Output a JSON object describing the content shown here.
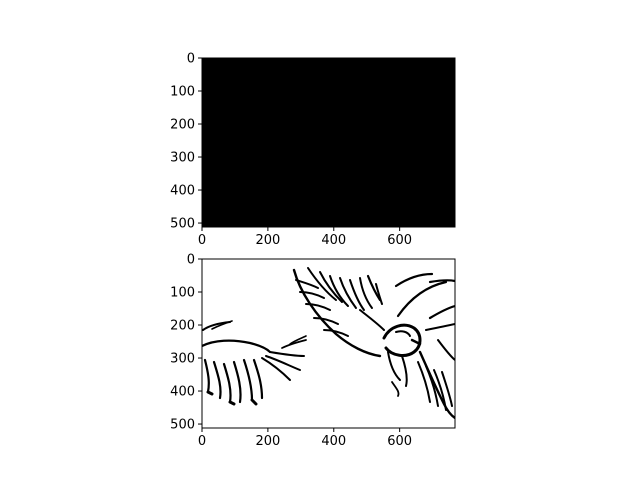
{
  "chart_data": [
    {
      "type": "image",
      "content": "solid black",
      "xlim": [
        0,
        768
      ],
      "ylim": [
        512,
        0
      ],
      "xticks": [
        0,
        200,
        400,
        600
      ],
      "yticks": [
        0,
        100,
        200,
        300,
        400,
        500
      ],
      "fill_color": "#000000"
    },
    {
      "type": "image",
      "content": "black line drawing of eagles and feathered wings on white background",
      "xlim": [
        0,
        768
      ],
      "ylim": [
        512,
        0
      ],
      "xticks": [
        0,
        200,
        400,
        600
      ],
      "yticks": [
        0,
        100,
        200,
        300,
        400,
        500
      ],
      "background_color": "#ffffff",
      "ink_color": "#000000"
    }
  ]
}
